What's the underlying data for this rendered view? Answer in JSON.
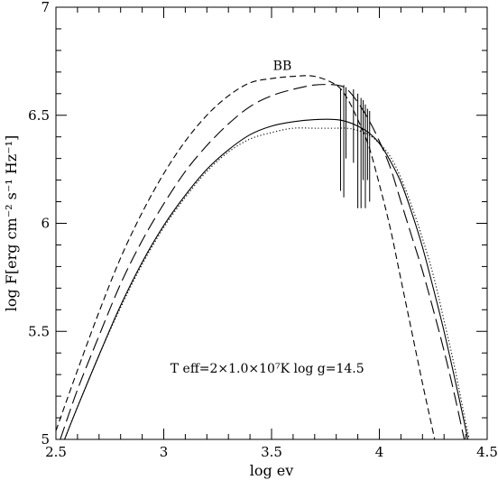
{
  "chart_data": {
    "type": "line",
    "title": "",
    "xlabel": "log ev",
    "ylabel": "log F[erg cm⁻² s⁻¹ Hz⁻¹]",
    "xlim": [
      2.5,
      4.5
    ],
    "ylim": [
      5,
      7
    ],
    "xticks": [
      2.5,
      3,
      3.5,
      4,
      4.5
    ],
    "xtick_labels": [
      "2.5",
      "3",
      "3.5",
      "4",
      "4.5"
    ],
    "yticks": [
      5,
      5.5,
      6,
      6.5,
      7
    ],
    "ytick_labels": [
      "5",
      "5.5",
      "6",
      "6.5",
      "7"
    ],
    "grid": false,
    "annotations": [
      {
        "text": "BB",
        "x": 3.55,
        "y": 6.71
      },
      {
        "text": "T eff=2×1.0×10⁷K  log  g=14.5",
        "x": 3.48,
        "y": 5.31
      }
    ],
    "series": [
      {
        "name": "",
        "style": "short-dash",
        "x": [
          2.5,
          2.6,
          2.7,
          2.8,
          2.9,
          3.0,
          3.1,
          3.2,
          3.3,
          3.4,
          3.5,
          3.6,
          3.7,
          3.8,
          3.85,
          3.9,
          3.95,
          4.0,
          4.05,
          4.1,
          4.15,
          4.2,
          4.25,
          4.27
        ],
        "y": [
          5.04,
          5.32,
          5.59,
          5.84,
          6.05,
          6.23,
          6.38,
          6.5,
          6.59,
          6.65,
          6.67,
          6.68,
          6.68,
          6.64,
          6.58,
          6.48,
          6.36,
          6.18,
          5.98,
          5.74,
          5.5,
          5.26,
          5.03,
          4.93
        ]
      },
      {
        "name": "",
        "style": "long-dash",
        "x": [
          2.52,
          2.6,
          2.7,
          2.8,
          2.9,
          3.0,
          3.1,
          3.2,
          3.3,
          3.4,
          3.5,
          3.6,
          3.7,
          3.8,
          3.85,
          3.9,
          3.95,
          4.0,
          4.05,
          4.1,
          4.15,
          4.2,
          4.25,
          4.3,
          4.35,
          4.4
        ],
        "y": [
          5.0,
          5.23,
          5.48,
          5.72,
          5.92,
          6.09,
          6.24,
          6.36,
          6.46,
          6.54,
          6.59,
          6.62,
          6.64,
          6.64,
          6.62,
          6.56,
          6.48,
          6.38,
          6.26,
          6.1,
          5.94,
          5.78,
          5.6,
          5.41,
          5.2,
          4.97
        ]
      },
      {
        "name": "",
        "style": "solid",
        "x": [
          2.54,
          2.6,
          2.7,
          2.8,
          2.9,
          3.0,
          3.1,
          3.2,
          3.3,
          3.4,
          3.5,
          3.6,
          3.7,
          3.8,
          3.85,
          3.9,
          3.95,
          4.0,
          4.05,
          4.1,
          4.15,
          4.2,
          4.25,
          4.3,
          4.35,
          4.4,
          4.43
        ],
        "y": [
          5.0,
          5.15,
          5.39,
          5.62,
          5.82,
          5.99,
          6.13,
          6.25,
          6.34,
          6.41,
          6.45,
          6.47,
          6.48,
          6.48,
          6.47,
          6.45,
          6.42,
          6.37,
          6.29,
          6.19,
          6.05,
          5.89,
          5.7,
          5.5,
          5.28,
          5.05,
          4.9
        ]
      },
      {
        "name": "",
        "style": "dotted",
        "x": [
          2.54,
          2.6,
          2.7,
          2.8,
          2.9,
          3.0,
          3.1,
          3.2,
          3.3,
          3.4,
          3.5,
          3.6,
          3.7,
          3.8,
          3.85,
          3.9,
          3.95,
          4.0,
          4.05,
          4.1,
          4.15,
          4.2,
          4.25,
          4.3,
          4.35,
          4.4,
          4.44
        ],
        "y": [
          5.0,
          5.15,
          5.39,
          5.61,
          5.81,
          5.98,
          6.12,
          6.24,
          6.33,
          6.39,
          6.42,
          6.44,
          6.44,
          6.44,
          6.44,
          6.43,
          6.41,
          6.37,
          6.31,
          6.21,
          6.08,
          5.93,
          5.76,
          5.55,
          5.33,
          5.08,
          4.9
        ]
      }
    ],
    "line_spikes": [
      {
        "x": 3.82,
        "y_top": 6.62,
        "y_bottom": 6.15
      },
      {
        "x": 3.835,
        "y_top": 6.64,
        "y_bottom": 6.12
      },
      {
        "x": 3.845,
        "y_top": 6.63,
        "y_bottom": 6.3
      },
      {
        "x": 3.88,
        "y_top": 6.62,
        "y_bottom": 6.28
      },
      {
        "x": 3.9,
        "y_top": 6.6,
        "y_bottom": 6.07
      },
      {
        "x": 3.915,
        "y_top": 6.58,
        "y_bottom": 6.07
      },
      {
        "x": 3.925,
        "y_top": 6.57,
        "y_bottom": 6.2
      },
      {
        "x": 3.935,
        "y_top": 6.55,
        "y_bottom": 6.07
      },
      {
        "x": 3.945,
        "y_top": 6.53,
        "y_bottom": 6.2
      },
      {
        "x": 3.955,
        "y_top": 6.52,
        "y_bottom": 6.1
      }
    ]
  }
}
